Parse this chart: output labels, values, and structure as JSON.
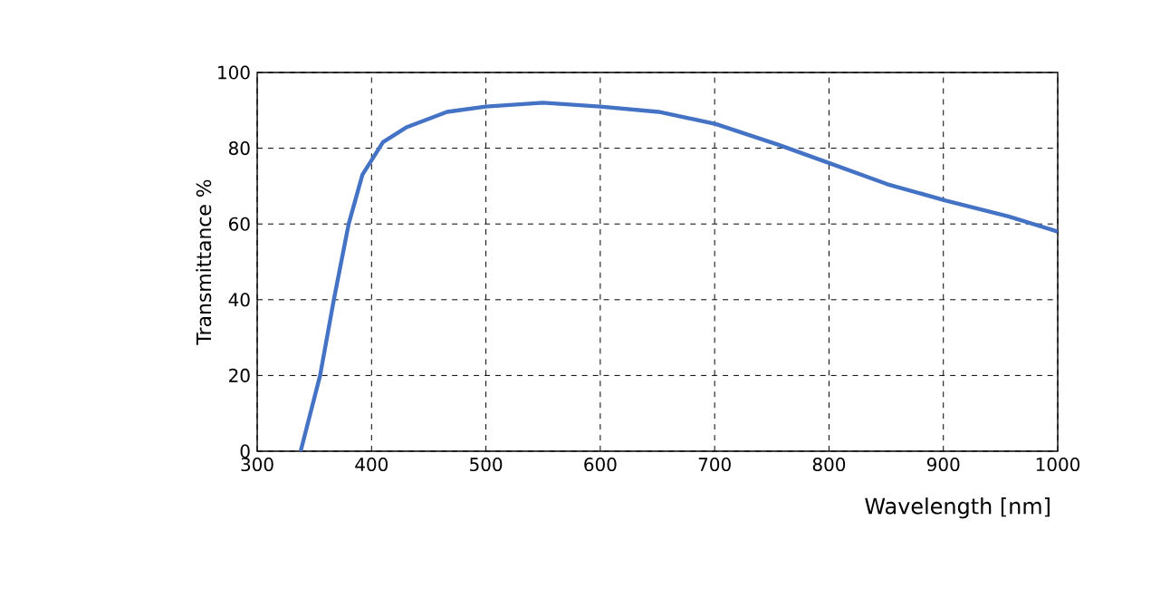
{
  "chart_data": {
    "type": "line",
    "xlabel": "Wavelength [nm]",
    "ylabel": "Transmittance %",
    "xlim": [
      300,
      1000
    ],
    "ylim": [
      0,
      100
    ],
    "xticks": [
      300,
      400,
      500,
      600,
      700,
      800,
      900,
      1000
    ],
    "yticks": [
      0,
      20,
      40,
      60,
      80,
      100
    ],
    "grid": true,
    "series": [
      {
        "color": "#4472c4",
        "x": [
          338,
          355,
          367,
          380,
          392,
          410,
          431,
          466,
          500,
          550,
          600,
          651,
          701,
          756,
          801,
          851,
          902,
          957,
          1000
        ],
        "values": [
          0,
          20,
          40,
          60,
          73,
          81.6,
          85.6,
          89.6,
          91,
          92,
          91,
          89.6,
          86.4,
          80.9,
          76,
          70.5,
          66.2,
          62,
          58
        ]
      }
    ]
  }
}
